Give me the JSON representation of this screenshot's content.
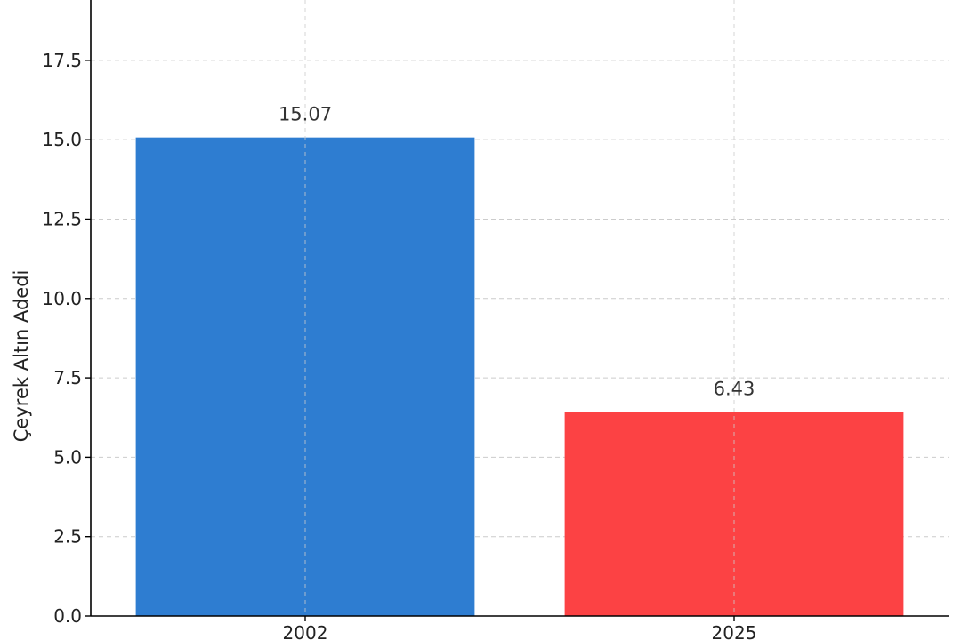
{
  "chart_data": {
    "type": "bar",
    "categories": [
      "2002",
      "2025"
    ],
    "values": [
      15.07,
      6.43
    ],
    "value_labels": [
      "15.07",
      "6.43"
    ],
    "colors": [
      "#2e7dd1",
      "#fc4244"
    ],
    "title": "",
    "xlabel": "",
    "ylabel": "Çeyrek Altın Adedi",
    "ylim": [
      0,
      19.4
    ],
    "yticks": [
      0,
      2.5,
      5,
      7.5,
      10,
      12.5,
      15,
      17.5
    ],
    "ytick_labels": [
      "0.0",
      "2.5",
      "5.0",
      "7.5",
      "10.0",
      "12.5",
      "15.0",
      "17.5"
    ],
    "grid": true,
    "grid_style": "dashed"
  }
}
